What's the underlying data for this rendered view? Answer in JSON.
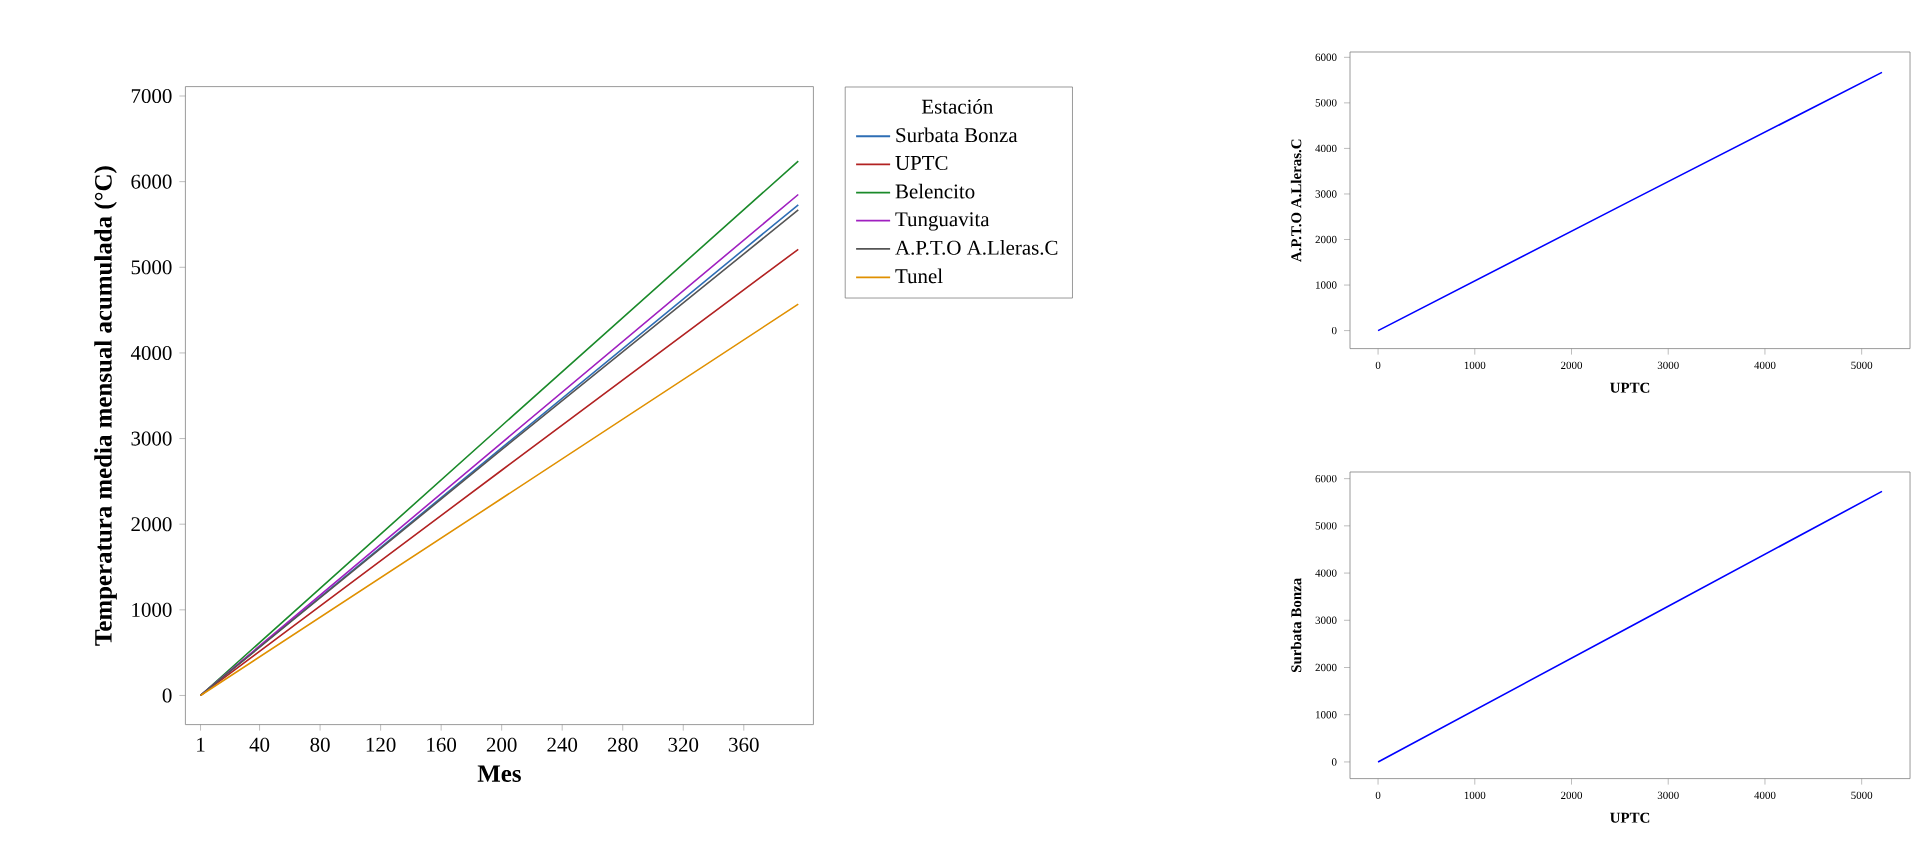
{
  "chart_data": [
    {
      "type": "line",
      "xlabel": "Mes",
      "ylabel": "Temperatura media mensual acumulada (°C)",
      "legend": "right",
      "legend_title": "Estación",
      "xlim": [
        -9,
        406
      ],
      "ylim": [
        -340,
        7110
      ],
      "xticks": [
        1,
        40,
        80,
        120,
        160,
        200,
        240,
        280,
        320,
        360
      ],
      "yticks": [
        0,
        1000,
        2000,
        3000,
        4000,
        5000,
        6000,
        7000
      ],
      "series": [
        {
          "name": "Surbata Bonza",
          "color": "#2e6eb5",
          "x": [
            1,
            200,
            396
          ],
          "values": [
            0,
            2890,
            5730
          ]
        },
        {
          "name": "UPTC",
          "color": "#b22222",
          "x": [
            1,
            200,
            396
          ],
          "values": [
            0,
            2630,
            5210
          ]
        },
        {
          "name": "Belencito",
          "color": "#1a8a2a",
          "x": [
            1,
            200,
            396
          ],
          "values": [
            0,
            3150,
            6240
          ]
        },
        {
          "name": "Tunguavita",
          "color": "#a020c0",
          "x": [
            1,
            200,
            396
          ],
          "values": [
            0,
            2950,
            5850
          ]
        },
        {
          "name": "A.P.T.O A.Lleras.C",
          "color": "#555555",
          "x": [
            1,
            200,
            396
          ],
          "values": [
            0,
            2870,
            5670
          ]
        },
        {
          "name": "Tunel",
          "color": "#e09000",
          "x": [
            1,
            200,
            396
          ],
          "values": [
            0,
            2300,
            4570
          ]
        }
      ]
    },
    {
      "type": "line",
      "xlabel": "UPTC",
      "ylabel": "A.P.T.O A.Lleras.C",
      "xlim": [
        -290,
        5500
      ],
      "ylim": [
        -395,
        6117
      ],
      "xticks": [
        0,
        1000,
        2000,
        3000,
        4000,
        5000
      ],
      "yticks": [
        0,
        1000,
        2000,
        3000,
        4000,
        5000,
        6000
      ],
      "series": [
        {
          "color": "#0000ff",
          "x": [
            0,
            2630,
            5210
          ],
          "values": [
            0,
            2870,
            5670
          ]
        }
      ]
    },
    {
      "type": "line",
      "xlabel": "UPTC",
      "ylabel": "Surbata Bonza",
      "xlim": [
        -290,
        5500
      ],
      "ylim": [
        -353,
        6141
      ],
      "xticks": [
        0,
        1000,
        2000,
        3000,
        4000,
        5000
      ],
      "yticks": [
        0,
        1000,
        2000,
        3000,
        4000,
        5000,
        6000
      ],
      "series": [
        {
          "color": "#0000ff",
          "x": [
            0,
            2630,
            5210
          ],
          "values": [
            0,
            2890,
            5730
          ]
        }
      ]
    }
  ]
}
